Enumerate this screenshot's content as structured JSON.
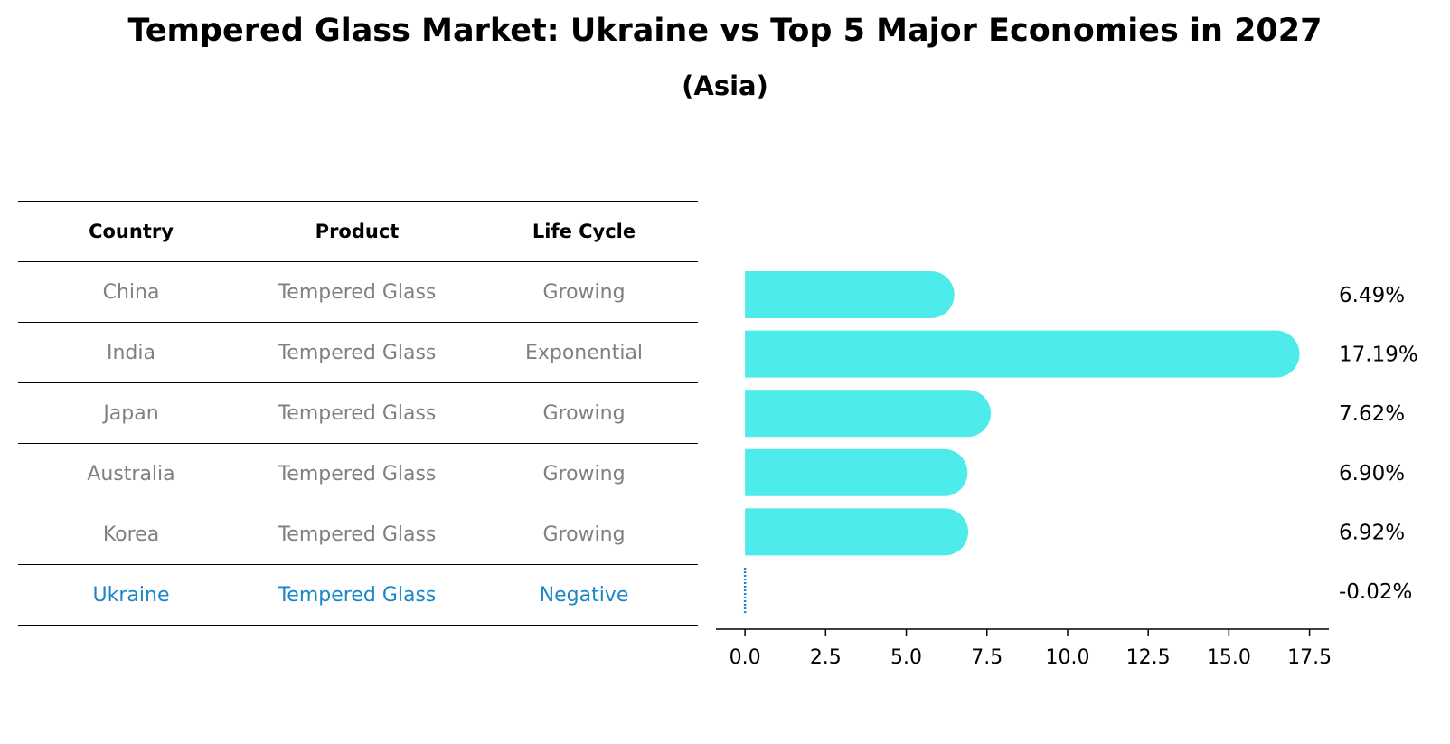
{
  "title": "Tempered Glass Market: Ukraine vs Top 5 Major Economies in 2027",
  "subtitle": "(Asia)",
  "table": {
    "headers": [
      "Country",
      "Product",
      "Life Cycle"
    ],
    "rows": [
      [
        "China",
        "Tempered Glass",
        "Growing"
      ],
      [
        "India",
        "Tempered Glass",
        "Exponential"
      ],
      [
        "Japan",
        "Tempered Glass",
        "Growing"
      ],
      [
        "Australia",
        "Tempered Glass",
        "Growing"
      ],
      [
        "Korea",
        "Tempered Glass",
        "Growing"
      ],
      [
        "Ukraine",
        "Tempered Glass",
        "Negative"
      ]
    ],
    "highlight_row": 5
  },
  "colors": {
    "bar": "#4deceb",
    "highlight": "#1a86c8",
    "muted_text": "#808080"
  },
  "chart_data": {
    "type": "bar",
    "orientation": "horizontal",
    "categories": [
      "China",
      "India",
      "Japan",
      "Australia",
      "Korea",
      "Ukraine"
    ],
    "values": [
      6.49,
      17.19,
      7.62,
      6.9,
      6.92,
      -0.02
    ],
    "value_labels": [
      "6.49%",
      "17.19%",
      "7.62%",
      "6.90%",
      "6.92%",
      "-0.02%"
    ],
    "xlim": [
      -0.9,
      18.1
    ],
    "xticks": [
      0.0,
      2.5,
      5.0,
      7.5,
      10.0,
      12.5,
      15.0,
      17.5
    ],
    "xtick_labels": [
      "0.0",
      "2.5",
      "5.0",
      "7.5",
      "10.0",
      "12.5",
      "15.0",
      "17.5"
    ],
    "grid": false
  }
}
